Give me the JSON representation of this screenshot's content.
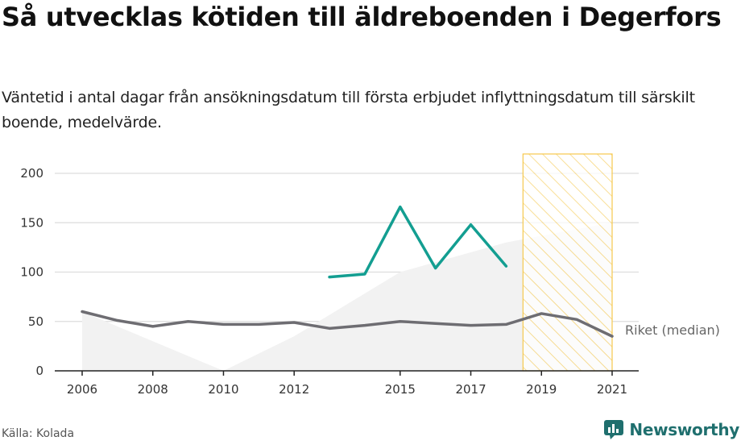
{
  "header": {
    "title": "Så utvecklas kötiden till äldreboenden i Degerfors",
    "subtitle": "Väntetid i antal dagar från ansökningsdatum till första erbjudet inflyttningsdatum till särskilt boende, medelvärde."
  },
  "footer": {
    "source": "Källa: Kolada",
    "brand": "Newsworthy",
    "brand_icon": "newsworthy-logo-icon"
  },
  "colors": {
    "municipality": "#139e91",
    "national": "#6e6d72",
    "band": "#f2f2f2",
    "highlight": "#f6c94e",
    "grid": "#dddddd"
  },
  "chart_data": {
    "type": "line",
    "title": "Så utvecklas kötiden till äldreboenden i Degerfors",
    "xlabel": "",
    "ylabel": "",
    "ylim": [
      0,
      200
    ],
    "xlim": [
      2006,
      2021
    ],
    "grid": true,
    "x_ticks": [
      "2006",
      "2008",
      "2010",
      "2012",
      "2015",
      "2017",
      "2019",
      "2021"
    ],
    "y_ticks": [
      "0",
      "50",
      "100",
      "150",
      "200"
    ],
    "highlight_period": [
      2018.5,
      2021
    ],
    "series": [
      {
        "key": "degerfors",
        "color": "#139e91",
        "x": [
          2013,
          2014,
          2015,
          2016,
          2017,
          2018
        ],
        "values": [
          95,
          98,
          166,
          104,
          148,
          106
        ]
      },
      {
        "key": "riket",
        "name": "Riket (median)",
        "color": "#6e6d72",
        "x": [
          2006,
          2007,
          2008,
          2009,
          2010,
          2011,
          2012,
          2013,
          2014,
          2015,
          2016,
          2017,
          2018,
          2019,
          2020,
          2021
        ],
        "values": [
          60,
          51,
          45,
          50,
          47,
          47,
          49,
          43,
          46,
          50,
          48,
          46,
          47,
          58,
          52,
          35
        ]
      }
    ],
    "band": {
      "x": [
        2006,
        2010,
        2012,
        2015,
        2018,
        2021
      ],
      "low": [
        0,
        0,
        0,
        0,
        0,
        0
      ],
      "high": [
        60,
        0,
        35,
        100,
        130,
        150
      ]
    }
  }
}
